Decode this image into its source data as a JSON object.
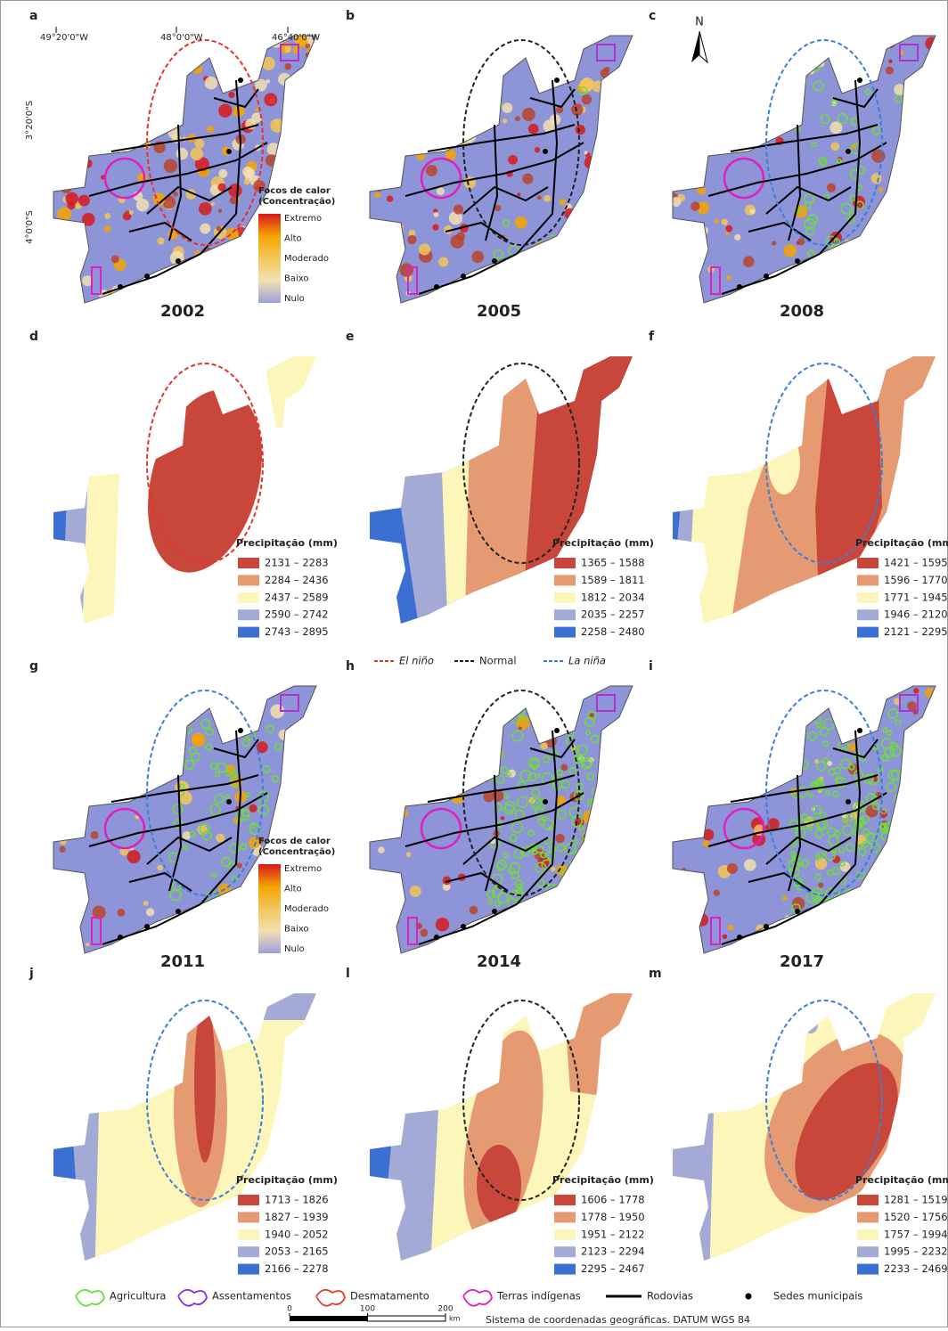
{
  "coordinates": {
    "longitude": [
      "49°20'0\"W",
      "48°0'0\"W",
      "46°40'0\"W"
    ],
    "latitude": [
      "3°20'0\"S",
      "4°0'0\"S"
    ]
  },
  "north_arrow": "N",
  "heat_legend": {
    "title": [
      "Focos de calor",
      "(Concentração)"
    ],
    "levels": [
      "Extremo",
      "Alto",
      "Moderado",
      "Baixo",
      "Nulo"
    ],
    "colors": [
      "#d7191c",
      "#f4a400",
      "#f2c65a",
      "#f3dfb0",
      "#9ba0dc"
    ]
  },
  "heat_panels": [
    {
      "letter": "a",
      "year": "2002",
      "ellipse_color": "#e8302c"
    },
    {
      "letter": "b",
      "year": "2005",
      "ellipse_color": "#222222"
    },
    {
      "letter": "c",
      "year": "2008",
      "ellipse_color": "#3b7fd9"
    },
    {
      "letter": "g",
      "year": "2011",
      "ellipse_color": "#3b7fd9"
    },
    {
      "letter": "h",
      "year": "2014",
      "ellipse_color": "#222222"
    },
    {
      "letter": "i",
      "year": "2017",
      "ellipse_color": "#3b7fd9"
    }
  ],
  "precip_class_colors": [
    "#c9473a",
    "#e59a72",
    "#fdf6bb",
    "#a4aad6",
    "#3b6fd1"
  ],
  "precip_panels": [
    {
      "letter": "d",
      "legend_title": "Precipitação (mm)",
      "ellipse_color": "#e8302c",
      "classes": [
        "2131 – 2283",
        "2284 – 2436",
        "2437 – 2589",
        "2590 – 2742",
        "2743 – 2895"
      ]
    },
    {
      "letter": "e",
      "legend_title": "Precipitação (mm)",
      "ellipse_color": "#222222",
      "classes": [
        "1365 – 1588",
        "1589 – 1811",
        "1812 – 2034",
        "2035 – 2257",
        "2258 – 2480"
      ]
    },
    {
      "letter": "f",
      "legend_title": "Precipitação (mm)",
      "ellipse_color": "#3b7fd9",
      "classes": [
        "1421 – 1595",
        "1596 – 1770",
        "1771 – 1945",
        "1946 – 2120",
        "2121 – 2295"
      ]
    },
    {
      "letter": "j",
      "legend_title": "Precipitação (mm)",
      "ellipse_color": "#3b7fd9",
      "classes": [
        "1713 – 1826",
        "1827 – 1939",
        "1940 – 2052",
        "2053 – 2165",
        "2166 – 2278"
      ]
    },
    {
      "letter": "l",
      "legend_title": "Precipitação (mm)",
      "ellipse_color": "#222222",
      "classes": [
        "1606 – 1778",
        "1778 – 1950",
        "1951 – 2122",
        "2123 – 2294",
        "2295 – 2467"
      ]
    },
    {
      "letter": "m",
      "legend_title": "Precipitação (mm)",
      "ellipse_color": "#3b7fd9",
      "classes": [
        "1281 – 1519",
        "1520 – 1756",
        "1757 – 1994",
        "1995 – 2232",
        "2233 – 2469"
      ]
    }
  ],
  "enso_legend": [
    {
      "label": "El niño",
      "color": "#e8302c"
    },
    {
      "label": "Normal",
      "color": "#222222"
    },
    {
      "label": "La niña",
      "color": "#3b7fd9"
    }
  ],
  "map_legend": [
    {
      "label": "Agricultura",
      "color": "#6fdc3a"
    },
    {
      "label": "Assentamentos",
      "color": "#8a2be2"
    },
    {
      "label": "Desmatamento",
      "color": "#e0403a"
    },
    {
      "label": "Terras indígenas",
      "color": "#e020c0"
    },
    {
      "label": "Rodovias",
      "color": "#000000"
    },
    {
      "label": "Sedes municipais",
      "color": "#000000"
    }
  ],
  "scale_bar": {
    "ticks": [
      0,
      100,
      200
    ],
    "unit": "km"
  },
  "crs": "Sistema de coordenadas geográficas. DATUM WGS 84"
}
